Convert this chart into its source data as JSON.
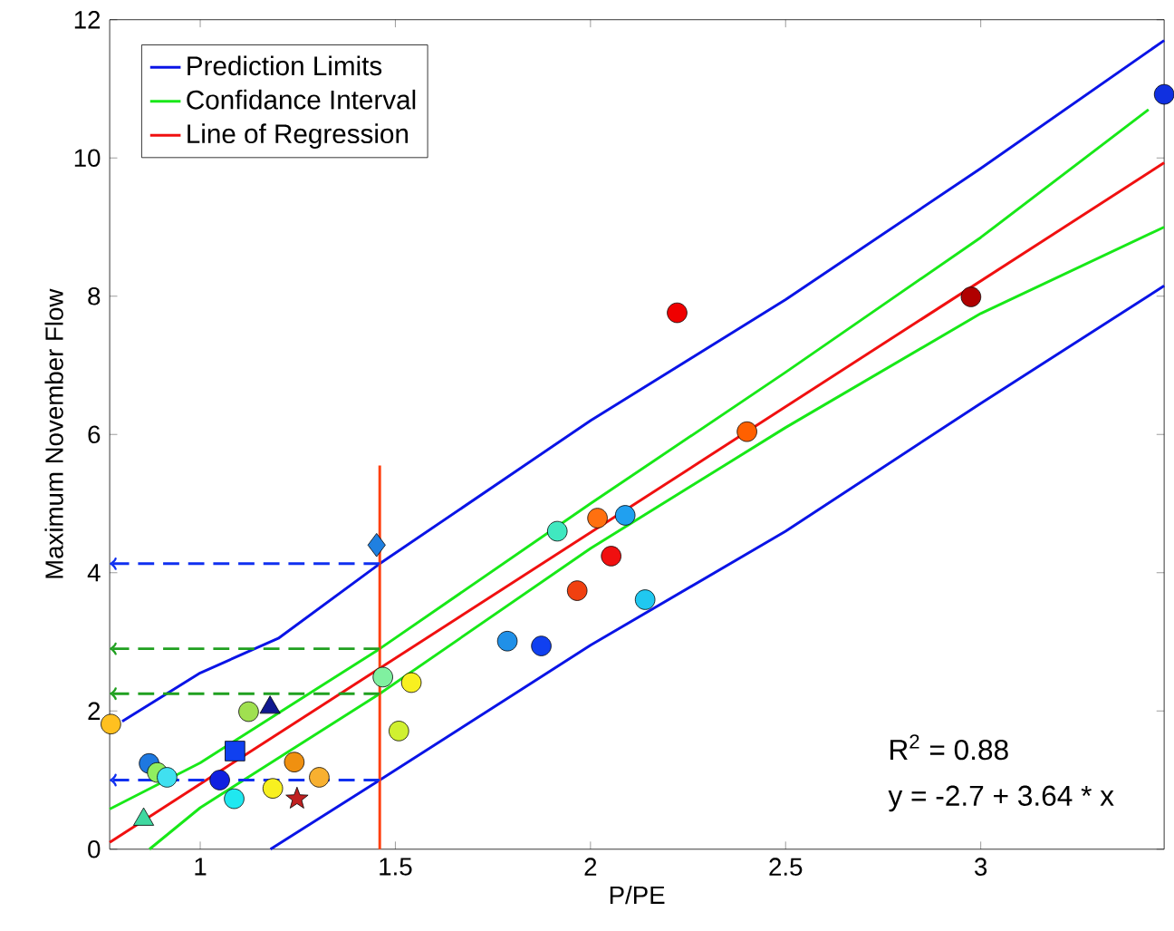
{
  "chart_data": {
    "type": "scatter",
    "xlabel": "P/PE",
    "ylabel": "Maximum November Flow",
    "xlim": [
      0.768,
      3.47
    ],
    "ylim": [
      0,
      12
    ],
    "xticks": [
      1,
      1.5,
      2,
      2.5,
      3
    ],
    "yticks": [
      0,
      2,
      4,
      6,
      8,
      10,
      12
    ],
    "grid": false,
    "legend": "top left",
    "annotations": [
      "R$^{2}$ = 0.88",
      "y = -2.7 + 3.64 * x"
    ],
    "series": [
      {
        "name": "Prediction Limits",
        "type": "line",
        "color": "#0a14e6",
        "line_style": "solid",
        "x": [
          0.8,
          1,
          1.2,
          1.46,
          2,
          2.5,
          3,
          3.47
        ],
        "values": [
          1.85,
          2.55,
          3.05,
          4.13,
          6.2,
          7.95,
          9.85,
          11.7
        ]
      },
      {
        "name": "Confidance Interval",
        "type": "line",
        "color": "#18e818",
        "line_style": "solid",
        "x": [
          0.768,
          1,
          1.46,
          2,
          2.5,
          3,
          3.43
        ],
        "values": [
          0.58,
          1.25,
          2.9,
          5.0,
          6.9,
          8.85,
          10.7
        ]
      },
      {
        "name": "Line of Regression",
        "type": "line",
        "color": "#f01010",
        "line_style": "solid",
        "x": [
          0.768,
          3.47
        ],
        "values": [
          0.1,
          9.93
        ]
      },
      {
        "type": "line",
        "color": "#0a14e6",
        "line_style": "solid",
        "x": [
          1.18,
          1.46,
          2,
          2.5,
          3,
          3.47
        ],
        "values": [
          0,
          1.0,
          2.95,
          4.6,
          6.45,
          8.15
        ]
      },
      {
        "type": "line",
        "color": "#18e818",
        "line_style": "solid",
        "x": [
          0.87,
          1,
          1.46,
          2,
          2.5,
          3,
          3.47
        ],
        "values": [
          0,
          0.6,
          2.25,
          4.35,
          6.1,
          7.75,
          9.0
        ]
      },
      {
        "type": "line",
        "color": "#ff4010",
        "line_style": "solid",
        "x": [
          1.46,
          1.46
        ],
        "values": [
          0,
          5.55
        ]
      },
      {
        "type": "line",
        "color": "#1030f0",
        "line_style": "dashed",
        "x": [
          1.46,
          0.768
        ],
        "values": [
          4.13,
          4.13
        ]
      },
      {
        "type": "line",
        "color": "#20a020",
        "line_style": "dashed",
        "x": [
          1.46,
          0.768
        ],
        "values": [
          2.9,
          2.9
        ]
      },
      {
        "type": "line",
        "color": "#20a020",
        "line_style": "dashed",
        "x": [
          1.46,
          0.768
        ],
        "values": [
          2.25,
          2.25
        ]
      },
      {
        "type": "line",
        "color": "#1030f0",
        "line_style": "dashed",
        "x": [
          1.46,
          0.768
        ],
        "values": [
          1.0,
          1.0
        ]
      },
      {
        "marker": "circle",
        "x": [
          0.771,
          0.869,
          0.89,
          0.915,
          1.05,
          1.087,
          1.124,
          1.186,
          1.241,
          1.305,
          1.468,
          1.509,
          1.541,
          1.787,
          1.874,
          1.915,
          1.966,
          2.018,
          2.053,
          2.089,
          2.14,
          2.222,
          2.401,
          2.975,
          3.47
        ],
        "values": [
          1.81,
          1.24,
          1.11,
          1.04,
          1.0,
          0.73,
          1.99,
          0.88,
          1.26,
          1.04,
          2.49,
          1.71,
          2.41,
          3.01,
          2.94,
          4.6,
          3.74,
          4.79,
          4.24,
          4.83,
          3.61,
          7.76,
          6.04,
          7.99,
          10.92
        ],
        "colors": [
          "#ffc020",
          "#1e78e0",
          "#90ee60",
          "#40e0f0",
          "#1020e0",
          "#20e8f0",
          "#a0e050",
          "#f8f020",
          "#f09010",
          "#f8b030",
          "#80f0a0",
          "#d0f030",
          "#f8f020",
          "#2090e8",
          "#1040f0",
          "#40e8c0",
          "#f04010",
          "#ff7010",
          "#f01010",
          "#20a0f0",
          "#20c8f0",
          "#f00000",
          "#ff6000",
          "#b00000",
          "#1030e0"
        ]
      },
      {
        "marker": "diamond",
        "color": "#2080e0",
        "x": [
          1.452
        ],
        "values": [
          4.4
        ]
      },
      {
        "marker": "triangle",
        "color": "#40d8a0",
        "x": [
          0.855
        ],
        "values": [
          0.43
        ]
      },
      {
        "marker": "triangle",
        "color": "#101890",
        "x": [
          1.179
        ],
        "values": [
          2.05
        ]
      },
      {
        "marker": "square",
        "color": "#1040f0",
        "x": [
          1.089
        ],
        "values": [
          1.42
        ]
      },
      {
        "marker": "star",
        "color": "#c02020",
        "x": [
          1.248
        ],
        "values": [
          0.73
        ]
      }
    ]
  }
}
